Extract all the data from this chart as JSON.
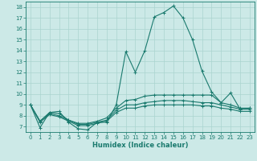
{
  "xlabel": "Humidex (Indice chaleur)",
  "bg_color": "#cce9e7",
  "line_color": "#1a7a6e",
  "grid_color": "#aad4cf",
  "xlim": [
    -0.5,
    23.5
  ],
  "ylim": [
    6.5,
    18.5
  ],
  "xticks": [
    0,
    1,
    2,
    3,
    4,
    5,
    6,
    7,
    8,
    9,
    10,
    11,
    12,
    13,
    14,
    15,
    16,
    17,
    18,
    19,
    20,
    21,
    22,
    23
  ],
  "yticks": [
    7,
    8,
    9,
    10,
    11,
    12,
    13,
    14,
    15,
    16,
    17,
    18
  ],
  "series": [
    {
      "x": [
        0,
        1,
        2,
        3,
        4,
        5,
        6,
        7,
        8,
        9,
        10,
        11,
        12,
        13,
        14,
        15,
        16,
        17,
        18,
        19,
        20,
        21,
        22,
        23
      ],
      "y": [
        9.0,
        6.9,
        8.3,
        8.4,
        7.4,
        6.8,
        6.7,
        7.4,
        7.4,
        9.0,
        13.9,
        12.0,
        14.0,
        17.1,
        17.5,
        18.1,
        17.0,
        15.0,
        12.1,
        10.2,
        9.2,
        10.1,
        8.6,
        8.7
      ]
    },
    {
      "x": [
        0,
        1,
        2,
        3,
        4,
        5,
        6,
        7,
        8,
        9,
        10,
        11,
        12,
        13,
        14,
        15,
        16,
        17,
        18,
        19,
        20,
        21,
        22,
        23
      ],
      "y": [
        9.0,
        7.5,
        8.3,
        8.2,
        7.6,
        7.3,
        7.3,
        7.5,
        7.8,
        8.7,
        9.4,
        9.5,
        9.8,
        9.9,
        9.9,
        9.9,
        9.9,
        9.9,
        9.9,
        9.9,
        9.2,
        9.0,
        8.7,
        8.7
      ]
    },
    {
      "x": [
        0,
        1,
        2,
        3,
        4,
        5,
        6,
        7,
        8,
        9,
        10,
        11,
        12,
        13,
        14,
        15,
        16,
        17,
        18,
        19,
        20,
        21,
        22,
        23
      ],
      "y": [
        9.0,
        7.5,
        8.2,
        8.0,
        7.6,
        7.2,
        7.2,
        7.4,
        7.6,
        8.5,
        9.0,
        9.0,
        9.2,
        9.3,
        9.4,
        9.4,
        9.4,
        9.3,
        9.2,
        9.2,
        9.0,
        8.8,
        8.6,
        8.6
      ]
    },
    {
      "x": [
        0,
        1,
        2,
        3,
        4,
        5,
        6,
        7,
        8,
        9,
        10,
        11,
        12,
        13,
        14,
        15,
        16,
        17,
        18,
        19,
        20,
        21,
        22,
        23
      ],
      "y": [
        9.0,
        7.4,
        8.1,
        7.9,
        7.5,
        7.1,
        7.1,
        7.3,
        7.5,
        8.3,
        8.7,
        8.7,
        8.9,
        9.0,
        9.0,
        9.0,
        9.0,
        9.0,
        8.9,
        8.9,
        8.7,
        8.6,
        8.4,
        8.4
      ]
    }
  ]
}
